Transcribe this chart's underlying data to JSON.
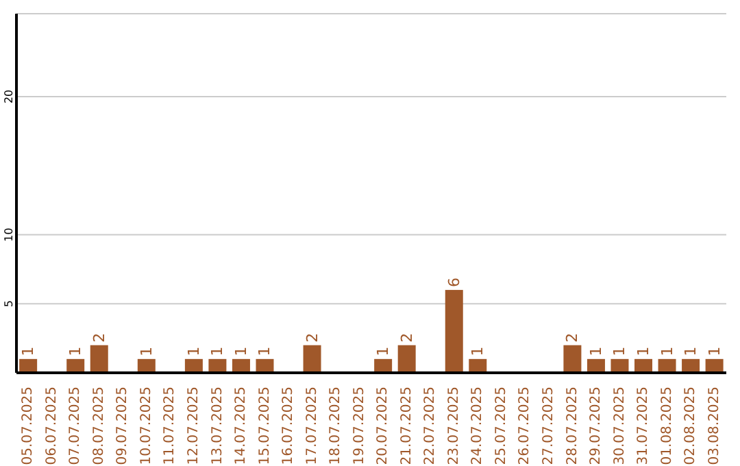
{
  "chart_data": {
    "type": "bar",
    "categories": [
      "05.07.2025",
      "06.07.2025",
      "07.07.2025",
      "08.07.2025",
      "09.07.2025",
      "10.07.2025",
      "11.07.2025",
      "12.07.2025",
      "13.07.2025",
      "14.07.2025",
      "15.07.2025",
      "16.07.2025",
      "17.07.2025",
      "18.07.2025",
      "19.07.2025",
      "20.07.2025",
      "21.07.2025",
      "22.07.2025",
      "23.07.2025",
      "24.07.2025",
      "25.07.2025",
      "26.07.2025",
      "27.07.2025",
      "28.07.2025",
      "29.07.2025",
      "30.07.2025",
      "31.07.2025",
      "01.08.2025",
      "02.08.2025",
      "03.08.2025"
    ],
    "values": [
      1,
      0,
      1,
      2,
      0,
      1,
      0,
      1,
      1,
      1,
      1,
      0,
      2,
      0,
      0,
      1,
      2,
      0,
      6,
      1,
      0,
      0,
      0,
      2,
      1,
      1,
      1,
      1,
      1,
      1
    ],
    "value_labels": [
      "1",
      null,
      "1",
      "2",
      null,
      "1",
      null,
      "1",
      "1",
      "1",
      "1",
      null,
      "2",
      null,
      null,
      "1",
      "2",
      null,
      "6",
      "1",
      null,
      null,
      null,
      "2",
      "1",
      "1",
      "1",
      "1",
      "1",
      "1"
    ],
    "color": "#a0582a",
    "ylim": [
      0,
      26
    ],
    "yticks": [
      5,
      10,
      20
    ],
    "grid": "y"
  }
}
